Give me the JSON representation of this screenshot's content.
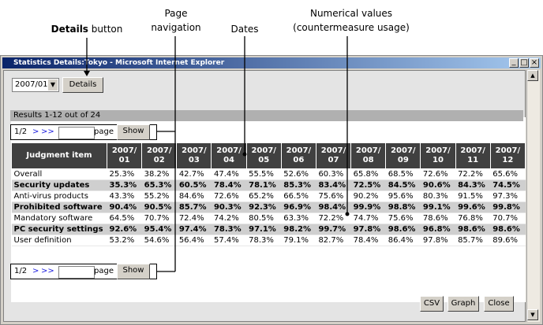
{
  "annotations": {
    "details_button": {
      "bold": "Details",
      "rest": " button"
    },
    "page_navigation": "Page navigation",
    "dates": "Dates",
    "numerical_values": "Numerical values (countermeasure usage)"
  },
  "window": {
    "title": "Statistics Details:Tokyo - Microsoft Internet Explorer",
    "month_select": "2007/01",
    "details_button": "Details",
    "results": "Results 1-12 out of 24",
    "pagination": {
      "page_info": "1/2",
      "next": ">",
      "last": ">>",
      "page_label": "page",
      "show": "Show"
    },
    "table": {
      "header": "Judgment item",
      "months": [
        {
          "year": "2007/",
          "month": "01"
        },
        {
          "year": "2007/",
          "month": "02"
        },
        {
          "year": "2007/",
          "month": "03"
        },
        {
          "year": "2007/",
          "month": "04"
        },
        {
          "year": "2007/",
          "month": "05"
        },
        {
          "year": "2007/",
          "month": "06"
        },
        {
          "year": "2007/",
          "month": "07"
        },
        {
          "year": "2007/",
          "month": "08"
        },
        {
          "year": "2007/",
          "month": "09"
        },
        {
          "year": "2007/",
          "month": "10"
        },
        {
          "year": "2007/",
          "month": "11"
        },
        {
          "year": "2007/",
          "month": "12"
        }
      ],
      "rows": [
        {
          "item": "Overall",
          "values": [
            "25.3%",
            "38.2%",
            "42.7%",
            "47.4%",
            "55.5%",
            "52.6%",
            "60.3%",
            "65.8%",
            "68.5%",
            "72.6%",
            "72.2%",
            "65.6%"
          ]
        },
        {
          "item": "Security updates",
          "values": [
            "35.3%",
            "65.3%",
            "60.5%",
            "78.4%",
            "78.1%",
            "85.3%",
            "83.4%",
            "72.5%",
            "84.5%",
            "90.6%",
            "84.3%",
            "74.5%"
          ]
        },
        {
          "item": "Anti-virus products",
          "values": [
            "43.3%",
            "55.2%",
            "84.6%",
            "72.6%",
            "65.2%",
            "66.5%",
            "75.6%",
            "90.2%",
            "95.6%",
            "80.3%",
            "91.5%",
            "97.3%"
          ]
        },
        {
          "item": "Prohibited software",
          "values": [
            "90.4%",
            "90.5%",
            "85.7%",
            "90.3%",
            "92.3%",
            "96.9%",
            "98.4%",
            "99.9%",
            "98.8%",
            "99.1%",
            "99.6%",
            "99.8%"
          ]
        },
        {
          "item": "Mandatory software",
          "values": [
            "64.5%",
            "70.7%",
            "72.4%",
            "74.2%",
            "80.5%",
            "63.3%",
            "72.2%",
            "74.7%",
            "75.6%",
            "78.6%",
            "76.8%",
            "70.7%"
          ]
        },
        {
          "item": "PC security settings",
          "values": [
            "92.6%",
            "95.4%",
            "97.4%",
            "78.3%",
            "97.1%",
            "98.2%",
            "99.7%",
            "97.8%",
            "98.6%",
            "96.8%",
            "98.6%",
            "98.6%"
          ]
        },
        {
          "item": "User definition",
          "values": [
            "53.2%",
            "54.6%",
            "56.4%",
            "57.4%",
            "78.3%",
            "79.1%",
            "82.7%",
            "78.4%",
            "86.4%",
            "97.8%",
            "85.7%",
            "89.6%"
          ]
        }
      ]
    },
    "buttons": [
      "CSV",
      "Graph",
      "Close"
    ]
  }
}
